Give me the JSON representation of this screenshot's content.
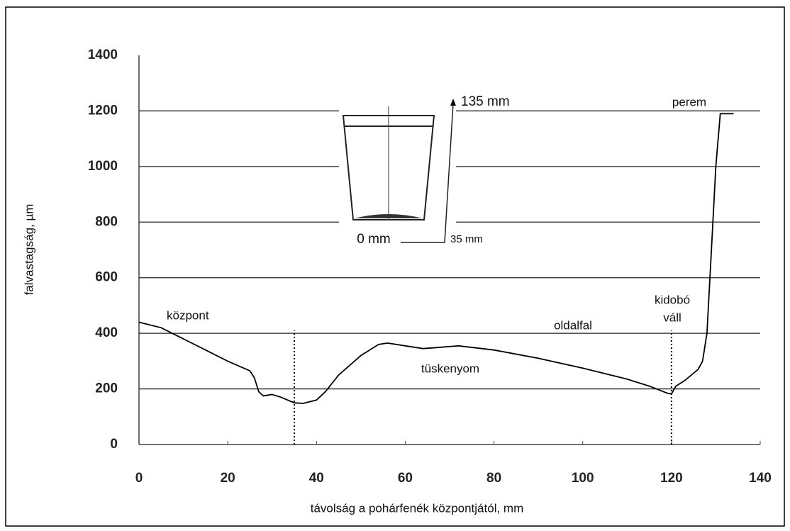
{
  "chart_data": {
    "type": "line",
    "xlabel": "távolság a pohárfenék központjától, mm",
    "ylabel": "falvastagság, µm",
    "x": [
      0,
      5,
      10,
      15,
      20,
      25,
      26,
      27,
      28,
      30,
      32,
      35,
      37,
      40,
      42,
      45,
      50,
      54,
      56,
      60,
      64,
      68,
      72,
      80,
      90,
      100,
      110,
      115,
      119,
      120,
      121,
      123,
      126,
      127,
      128,
      129,
      130,
      131,
      134
    ],
    "values": [
      440,
      420,
      380,
      340,
      300,
      265,
      240,
      190,
      175,
      180,
      170,
      150,
      148,
      160,
      190,
      250,
      320,
      360,
      365,
      355,
      345,
      350,
      355,
      340,
      310,
      275,
      235,
      210,
      185,
      182,
      210,
      230,
      270,
      300,
      400,
      700,
      1000,
      1190,
      1190
    ],
    "color": "#000000",
    "xlim": [
      0,
      140
    ],
    "xticks": [
      0,
      20,
      40,
      60,
      80,
      100,
      120,
      140
    ],
    "ylim": [
      0,
      1400
    ],
    "yticks": [
      0,
      200,
      400,
      600,
      800,
      1000,
      1200,
      1400
    ],
    "grid": true,
    "markers_x": [
      35,
      120
    ],
    "annotations": [
      "központ",
      "tüskenyom",
      "oldalfal",
      "kidobó",
      "váll",
      "perem",
      "135 mm",
      "0 mm",
      "35 mm"
    ]
  }
}
